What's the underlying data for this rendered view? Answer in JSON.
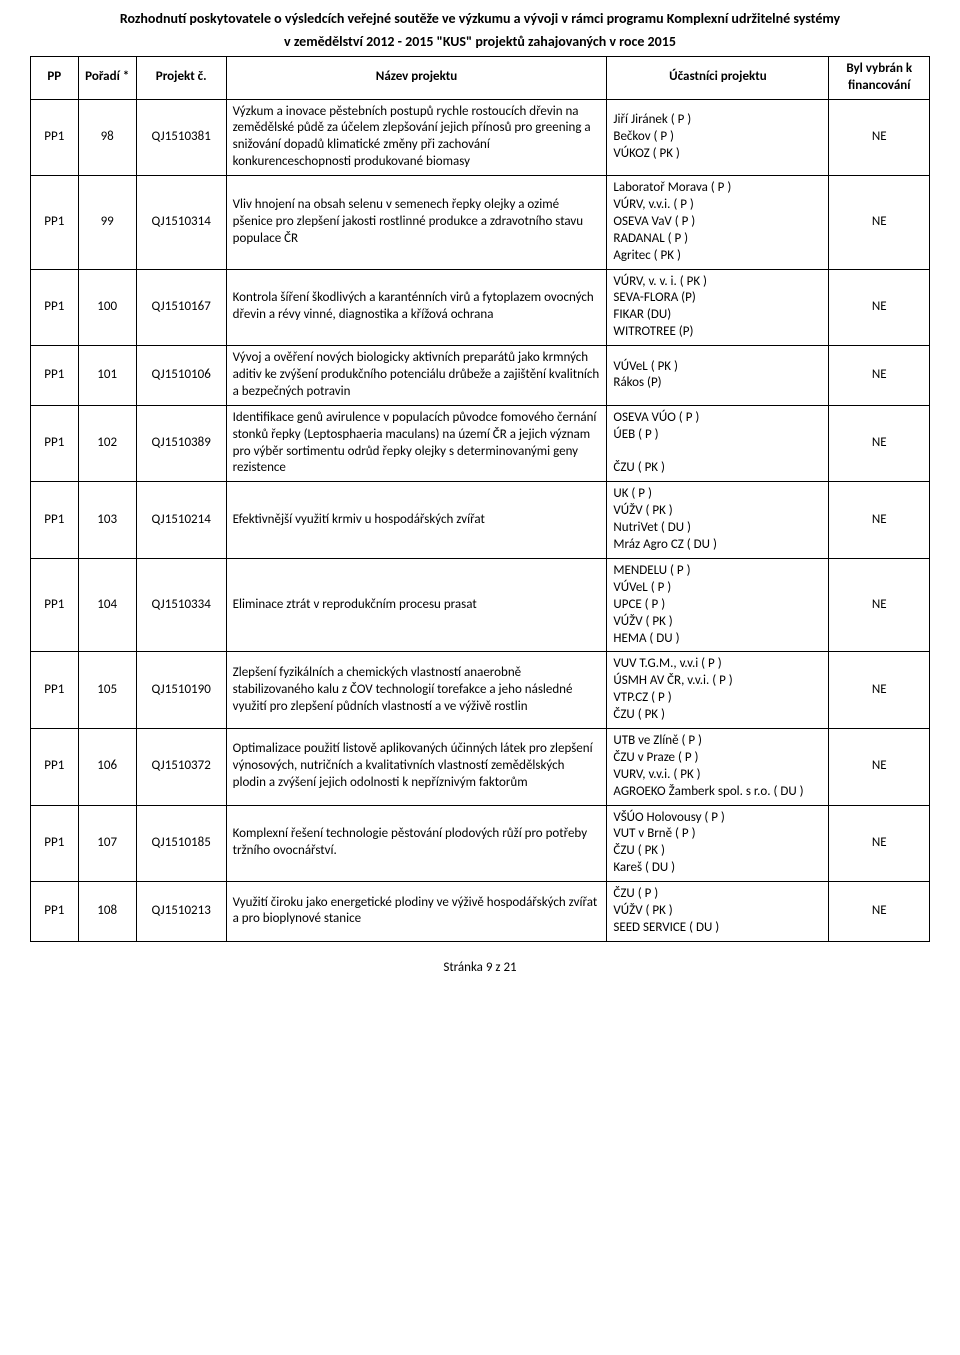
{
  "doc_title_line1": "Rozhodnutí poskytovatele o výsledcích veřejné soutěže ve výzkumu a vývoji v rámci programu Komplexní udržitelné systémy",
  "doc_title_line2": "v zemědělství 2012 - 2015 \"KUS\" projektů zahajovaných v roce 2015",
  "headers": {
    "pp": "PP",
    "poradi": "Pořadí *",
    "projekt": "Projekt č.",
    "nazev": "Název projektu",
    "ucastnici": "Účastníci projektu",
    "vybran": "Byl vybrán k financování"
  },
  "rows": [
    {
      "pp": "PP1",
      "poradi": "98",
      "projekt": "QJ1510381",
      "nazev": "Výzkum a inovace pěstebních postupů rychle rostoucích dřevin na zemědělské půdě za účelem zlepšování jejich přínosů pro greening a snižování dopadů klimatické změny při zachování konkurenceschopnosti produkované biomasy",
      "ucastnici": "Jiří Jiránek ( P )\nBečkov ( P )\nVÚKOZ ( PK )",
      "vybran": "NE"
    },
    {
      "pp": "PP1",
      "poradi": "99",
      "projekt": "QJ1510314",
      "nazev": "Vliv hnojení na obsah selenu v semenech řepky olejky a ozimé pšenice pro zlepšení jakosti rostlinné produkce a zdravotního stavu populace ČR",
      "ucastnici": "Laboratoř Morava ( P )\nVÚRV, v.v.i. ( P )\nOSEVA VaV ( P )\nRADANAL ( P )\nAgritec ( PK )",
      "vybran": "NE"
    },
    {
      "pp": "PP1",
      "poradi": "100",
      "projekt": "QJ1510167",
      "nazev": "Kontrola šíření škodlivých a karanténních virů a fytoplazem ovocných dřevin a révy vinné, diagnostika a křížová ochrana",
      "ucastnici": "VÚRV, v. v. i. ( PK )\nSEVA-FLORA (P)\nFIKAR (DU)\nWITROTREE (P)",
      "vybran": "NE"
    },
    {
      "pp": "PP1",
      "poradi": "101",
      "projekt": "QJ1510106",
      "nazev": "Vývoj a ověření nových biologicky aktivních preparátů jako krmných aditiv ke zvýšení produkčního potenciálu drůbeže a zajištění kvalitních a bezpečných potravin",
      "ucastnici": "VÚVeL ( PK )\nRákos (P)",
      "vybran": "NE"
    },
    {
      "pp": "PP1",
      "poradi": "102",
      "projekt": "QJ1510389",
      "nazev": "Identifikace genů avirulence v populacích původce fomového černání stonků řepky (Leptosphaeria maculans) na území ČR a jejich význam pro výběr sortimentu odrůd řepky olejky s determinovanými geny rezistence",
      "ucastnici": "OSEVA VÚO ( P )\nÚEB ( P )\n\nČZU ( PK )",
      "vybran": "NE"
    },
    {
      "pp": "PP1",
      "poradi": "103",
      "projekt": "QJ1510214",
      "nazev": "Efektivnější využití krmiv u hospodářských zvířat",
      "ucastnici": "UK ( P )\nVÚŽV ( PK )\nNutriVet ( DU )\nMráz Agro CZ ( DU )",
      "vybran": "NE"
    },
    {
      "pp": "PP1",
      "poradi": "104",
      "projekt": "QJ1510334",
      "nazev": "Eliminace ztrát v reprodukčním procesu prasat",
      "ucastnici": "MENDELU ( P )\nVÚVeL ( P )\nUPCE ( P )\nVÚŽV ( PK )\nHEMA ( DU )",
      "vybran": "NE"
    },
    {
      "pp": "PP1",
      "poradi": "105",
      "projekt": "QJ1510190",
      "nazev": "Zlepšení fyzikálních a chemických vlastností anaerobně stabilizovaného kalu z ČOV technologií torefakce a jeho následné využití pro zlepšení půdních vlastností a ve výživě rostlin",
      "ucastnici": "VUV T.G.M., v.v.i ( P )\nÚSMH AV ČR, v.v.i. ( P )\nVTP.CZ ( P )\nČZU ( PK )",
      "vybran": "NE"
    },
    {
      "pp": "PP1",
      "poradi": "106",
      "projekt": "QJ1510372",
      "nazev": "Optimalizace použití listově aplikovaných účinných látek pro zlepšení výnosových, nutričních a kvalitativních vlastností zemědělských plodin a zvýšení jejich odolnosti k nepříznivým faktorům",
      "ucastnici": "UTB ve Zlíně ( P )\nČZU v Praze ( P )\nVURV, v.v.i. ( PK )\nAGROEKO Žamberk spol. s r.o. ( DU )",
      "vybran": "NE"
    },
    {
      "pp": "PP1",
      "poradi": "107",
      "projekt": "QJ1510185",
      "nazev": "Komplexní řešení technologie pěstování plodových růží pro potřeby tržního ovocnářství.",
      "ucastnici": "VŠÚO Holovousy ( P )\nVUT v Brně ( P )\nČZU ( PK )\nKareš ( DU )",
      "vybran": "NE"
    },
    {
      "pp": "PP1",
      "poradi": "108",
      "projekt": "QJ1510213",
      "nazev": "Využití čiroku jako energetické plodiny ve výživě hospodářských zvířat a pro bioplynové stanice",
      "ucastnici": "ČZU ( P )\nVÚŽV ( PK )\nSEED SERVICE ( DU )",
      "vybran": "NE"
    }
  ],
  "footer": "Stránka 9 z 21"
}
